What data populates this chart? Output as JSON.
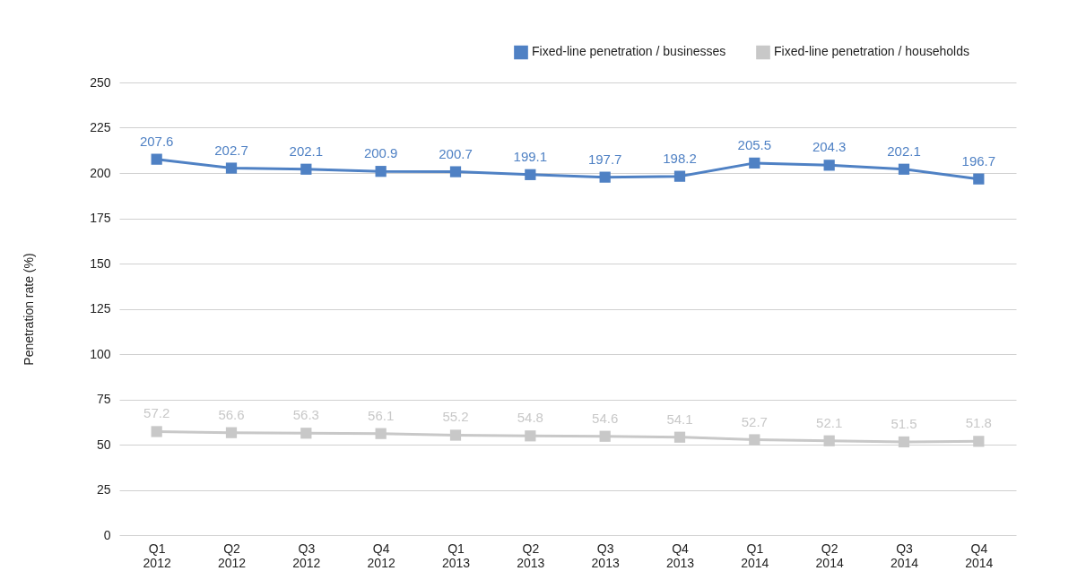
{
  "chart_data": {
    "type": "line",
    "ylabel": "Penetration rate (%)",
    "categories": [
      "Q1 2012",
      "Q2 2012",
      "Q3 2012",
      "Q4 2012",
      "Q1 2013",
      "Q2 2013",
      "Q3 2013",
      "Q4 2013",
      "Q1 2014",
      "Q2 2014",
      "Q3 2014",
      "Q4 2014"
    ],
    "series": [
      {
        "name": "Fixed-line penetration / businesses",
        "color": "#4f81c4",
        "values": [
          207.6,
          202.7,
          202.1,
          200.9,
          200.7,
          199.1,
          197.7,
          198.2,
          205.5,
          204.3,
          202.1,
          196.7
        ]
      },
      {
        "name": "Fixed-line penetration / households",
        "color": "#c8c8c8",
        "values": [
          57.2,
          56.6,
          56.3,
          56.1,
          55.2,
          54.8,
          54.6,
          54.1,
          52.7,
          52.1,
          51.5,
          51.8
        ]
      }
    ],
    "ylim": [
      0,
      250
    ],
    "yticks": [
      0,
      25,
      50,
      75,
      100,
      125,
      150,
      175,
      200,
      225,
      250
    ],
    "grid": "y",
    "legend": "top right",
    "marker": "square",
    "line_style": "solid",
    "data_labels": true
  }
}
